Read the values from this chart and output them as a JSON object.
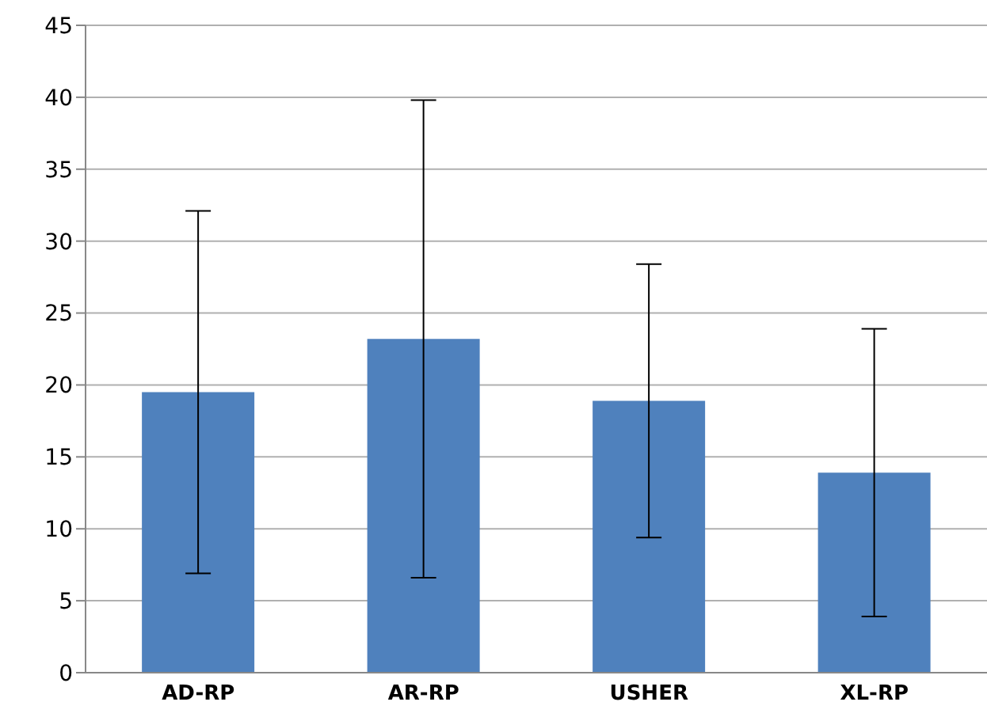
{
  "chart_data": {
    "type": "bar",
    "categories": [
      "AD-RP",
      "AR-RP",
      "USHER",
      "XL-RP"
    ],
    "values": [
      19.5,
      23.2,
      18.9,
      13.9
    ],
    "errors": [
      12.6,
      16.6,
      9.5,
      10
    ],
    "color": "#4f81bd",
    "ylim": [
      0,
      45
    ],
    "yticks": [
      0,
      5,
      10,
      15,
      20,
      25,
      30,
      35,
      40,
      45
    ],
    "grid": "y"
  }
}
